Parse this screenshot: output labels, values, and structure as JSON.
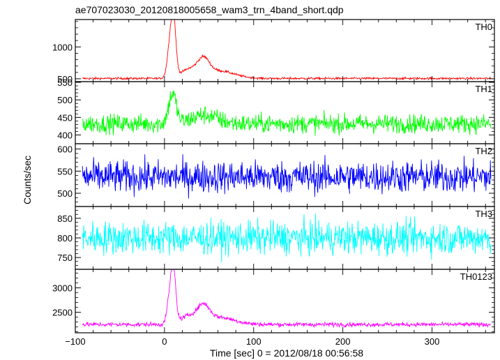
{
  "figure": {
    "title": "ae707023030_20120818005658_wam3_trn_4band_short.qdp",
    "xlabel": "Time [sec] 0 = 2012/08/18 00:56:58",
    "ylabel": "Counts/sec"
  },
  "chart_data": {
    "type": "line",
    "x_range": [
      -100,
      370
    ],
    "x_ticks": [
      -100,
      0,
      100,
      200,
      300
    ],
    "x_tick_labels": [
      "−100",
      "0",
      "100",
      "200",
      "300"
    ],
    "panels": [
      {
        "name": "TH0",
        "color": "#ff0000",
        "ylim": [
          455,
          1430
        ],
        "y_ticks": [
          500,
          1000
        ],
        "y_minor": [
          600,
          700,
          800,
          900,
          1100,
          1200,
          1300,
          1400
        ],
        "baseline": 505,
        "noise": 12,
        "features": [
          {
            "center": 8,
            "amplitude": 820,
            "width": 5
          },
          {
            "center": 11,
            "amplitude": 350,
            "width": 3
          },
          {
            "center": 28,
            "amplitude": 130,
            "width": 14
          },
          {
            "center": 44,
            "amplitude": 230,
            "width": 9
          },
          {
            "center": 60,
            "amplitude": 120,
            "width": 25
          }
        ]
      },
      {
        "name": "TH1",
        "color": "#00ff00",
        "ylim": [
          375,
          552
        ],
        "y_ticks": [
          400,
          450,
          500,
          550
        ],
        "y_minor": [
          410,
          420,
          430,
          440,
          460,
          470,
          480,
          490,
          510,
          520,
          530,
          540
        ],
        "baseline": 432,
        "noise": 19,
        "features": [
          {
            "center": 9,
            "amplitude": 85,
            "width": 6
          },
          {
            "center": 45,
            "amplitude": 25,
            "width": 20
          }
        ]
      },
      {
        "name": "TH2",
        "color": "#0000ff",
        "ylim": [
          470,
          612
        ],
        "y_ticks": [
          500,
          550,
          600
        ],
        "y_minor": [
          480,
          490,
          510,
          520,
          530,
          540,
          560,
          570,
          580,
          590
        ],
        "baseline": 537,
        "noise": 26,
        "features": []
      },
      {
        "name": "TH3",
        "color": "#00ffff",
        "ylim": [
          720,
          880
        ],
        "y_ticks": [
          750,
          800,
          850
        ],
        "y_minor": [
          730,
          740,
          760,
          770,
          780,
          790,
          810,
          820,
          830,
          840,
          860,
          870
        ],
        "baseline": 800,
        "noise": 30,
        "features": []
      },
      {
        "name": "TH0123",
        "color": "#ff00ff",
        "ylim": [
          2080,
          3380
        ],
        "y_ticks": [
          2500,
          3000
        ],
        "y_minor": [
          2100,
          2200,
          2300,
          2400,
          2600,
          2700,
          2800,
          2900,
          3100,
          3200,
          3300
        ],
        "baseline": 2250,
        "noise": 32,
        "features": [
          {
            "center": 8,
            "amplitude": 950,
            "width": 5
          },
          {
            "center": 11,
            "amplitude": 400,
            "width": 3
          },
          {
            "center": 28,
            "amplitude": 160,
            "width": 14
          },
          {
            "center": 44,
            "amplitude": 290,
            "width": 9
          },
          {
            "center": 60,
            "amplitude": 150,
            "width": 25
          }
        ]
      }
    ]
  }
}
